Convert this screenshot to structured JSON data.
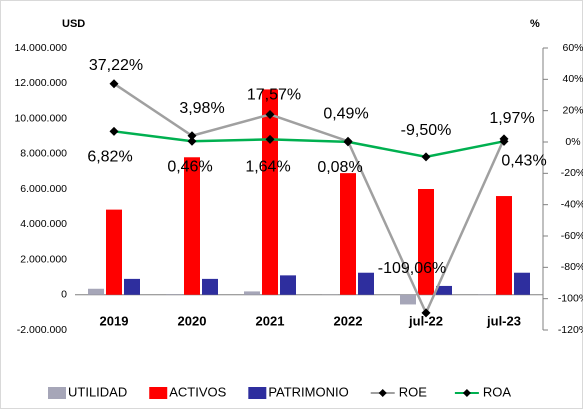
{
  "chart_data": {
    "type": "bar",
    "y_label": "USD",
    "y2_label": "%",
    "categories": [
      "2019",
      "2020",
      "2021",
      "2022",
      "jul-22",
      "jul-23"
    ],
    "series": [
      {
        "name": "UTILIDAD",
        "color": "#a6a6b8",
        "values": [
          340000,
          30000,
          190000,
          10000,
          -550000,
          20000
        ]
      },
      {
        "name": "ACTIVOS",
        "color": "#ff0000",
        "values": [
          4830000,
          7800000,
          11650000,
          6900000,
          6000000,
          5600000
        ]
      },
      {
        "name": "PATRIMONIO",
        "color": "#2e2e9e",
        "values": [
          900000,
          900000,
          1100000,
          1250000,
          500000,
          1250000
        ]
      },
      {
        "name": "ROE",
        "type": "line",
        "axis": "y2",
        "color": "#a0a0a0",
        "marker_color": "#000000",
        "values": [
          37.22,
          3.98,
          17.57,
          0.49,
          -109.06,
          1.97
        ],
        "value_labels": [
          "37,22%",
          "3,98%",
          "17,57%",
          "0,49%",
          "-109,06%",
          "1,97%"
        ]
      },
      {
        "name": "ROA",
        "type": "line",
        "axis": "y2",
        "color": "#00b050",
        "marker_color": "#000000",
        "values": [
          6.82,
          0.46,
          1.64,
          0.08,
          -9.5,
          0.43
        ],
        "value_labels": [
          "6,82%",
          "0,46%",
          "1,64%",
          "0,08%",
          "-9,50%",
          "0,43%"
        ]
      }
    ],
    "ylim": [
      -2000000,
      14000000
    ],
    "yticks": [
      {
        "value": -2000000,
        "label": "-2.000.000"
      },
      {
        "value": 0,
        "label": "0"
      },
      {
        "value": 2000000,
        "label": "2.000.000"
      },
      {
        "value": 4000000,
        "label": "4.000.000"
      },
      {
        "value": 6000000,
        "label": "6.000.000"
      },
      {
        "value": 8000000,
        "label": "8.000.000"
      },
      {
        "value": 10000000,
        "label": "10.000.000"
      },
      {
        "value": 12000000,
        "label": "12.000.000"
      },
      {
        "value": 14000000,
        "label": "14.000.000"
      }
    ],
    "y2lim": [
      -120,
      60
    ],
    "y2ticks": [
      {
        "value": -120,
        "label": "-120%"
      },
      {
        "value": -100,
        "label": "-100%"
      },
      {
        "value": -80,
        "label": "-80%"
      },
      {
        "value": -60,
        "label": "-60%"
      },
      {
        "value": -40,
        "label": "-40%"
      },
      {
        "value": -20,
        "label": "-20%"
      },
      {
        "value": 0,
        "label": "0%"
      },
      {
        "value": 20,
        "label": "20%"
      },
      {
        "value": 40,
        "label": "40%"
      },
      {
        "value": 60,
        "label": "60%"
      }
    ],
    "grid": false,
    "legend": "bottom"
  }
}
